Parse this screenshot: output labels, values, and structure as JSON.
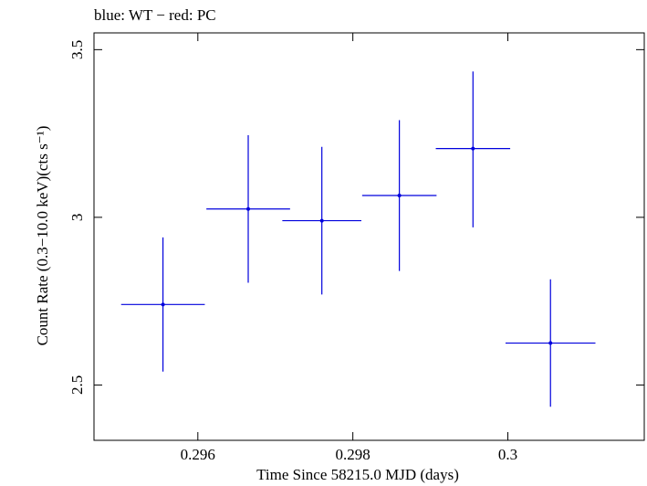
{
  "chart_data": {
    "type": "scatter",
    "title": "blue: WT − red: PC",
    "xlabel": "Time Since 58215.0 MJD (days)",
    "ylabel": "Count Rate (0.3−10.0 keV)(cts s⁻¹)",
    "xlim": [
      0.29466,
      0.30176
    ],
    "ylim": [
      2.335,
      3.55
    ],
    "x_ticks": [
      0.296,
      0.298,
      0.3
    ],
    "x_tick_labels": [
      "0.296",
      "0.298",
      "0.3"
    ],
    "y_ticks": [
      2.5,
      3,
      3.5
    ],
    "y_tick_labels": [
      "2.5",
      "3",
      "3.5"
    ],
    "grid": false,
    "series": [
      {
        "color": "#0000dd",
        "points": [
          {
            "x": 0.29555,
            "y": 2.74,
            "xerr": 0.00054,
            "yerr_low": 0.2,
            "yerr_high": 0.2
          },
          {
            "x": 0.29665,
            "y": 3.025,
            "xerr": 0.00054,
            "yerr_low": 0.22,
            "yerr_high": 0.22
          },
          {
            "x": 0.2976,
            "y": 2.99,
            "xerr": 0.00051,
            "yerr_low": 0.22,
            "yerr_high": 0.22
          },
          {
            "x": 0.2986,
            "y": 3.065,
            "xerr": 0.00048,
            "yerr_low": 0.225,
            "yerr_high": 0.225
          },
          {
            "x": 0.29955,
            "y": 3.205,
            "xerr": 0.00048,
            "yerr_low": 0.235,
            "yerr_high": 0.23
          },
          {
            "x": 0.30055,
            "y": 2.625,
            "xerr": 0.00058,
            "yerr_low": 0.19,
            "yerr_high": 0.19
          }
        ]
      }
    ]
  }
}
